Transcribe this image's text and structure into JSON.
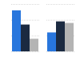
{
  "chart_data": {
    "type": "bar",
    "categories": [
      null,
      null
    ],
    "series": [
      {
        "color": "#2876dd",
        "values": [
          52,
          24
        ]
      },
      {
        "color": "#1b2a41",
        "values": [
          34,
          38
        ]
      },
      {
        "color": "#b4b4b4",
        "values": [
          16,
          36
        ]
      }
    ],
    "ylim": [
      0,
      60
    ],
    "yticks": [
      0,
      20,
      40,
      60
    ],
    "grid": true,
    "tick_labels": false
  }
}
